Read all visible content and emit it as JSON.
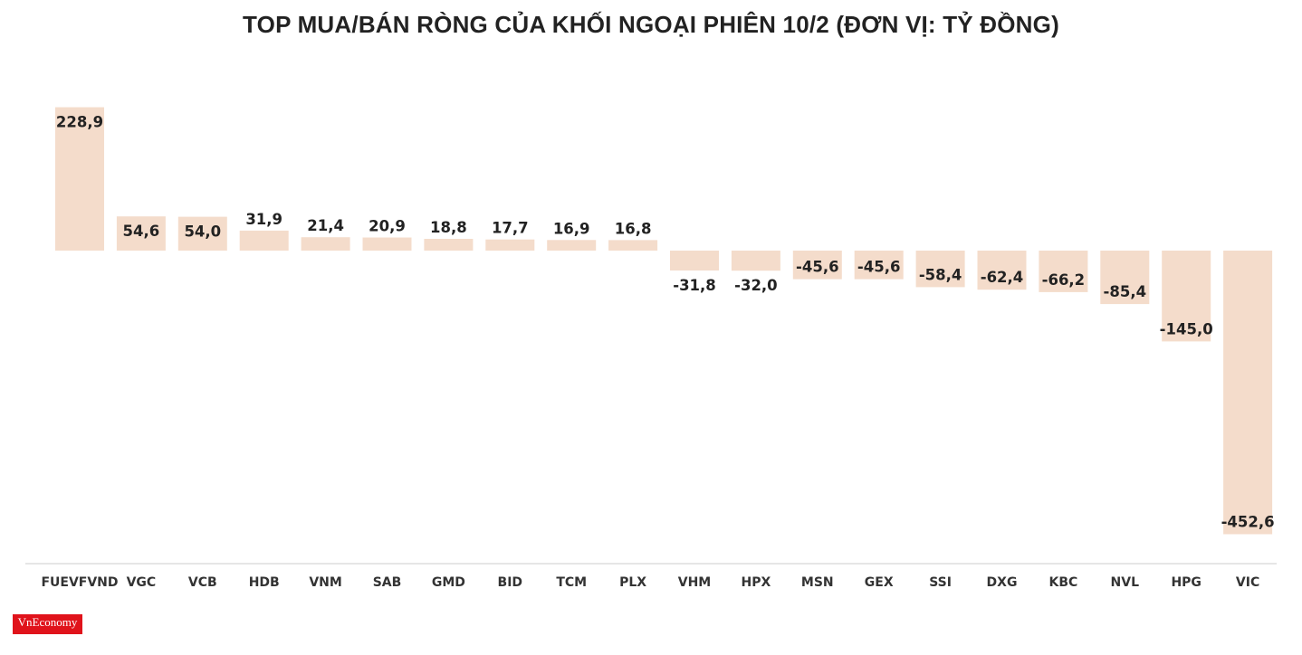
{
  "chart_data": {
    "type": "bar",
    "title": "TOP MUA/BÁN RÒNG CỦA KHỐI NGOẠI PHIÊN 10/2 (ĐƠN VỊ: TỶ ĐỒNG)",
    "categories": [
      "FUEVFVND",
      "VGC",
      "VCB",
      "HDB",
      "VNM",
      "SAB",
      "GMD",
      "BID",
      "TCM",
      "PLX",
      "VHM",
      "HPX",
      "MSN",
      "GEX",
      "SSI",
      "DXG",
      "KBC",
      "NVL",
      "HPG",
      "VIC"
    ],
    "values": [
      228.9,
      54.6,
      54.0,
      31.9,
      21.4,
      20.9,
      18.8,
      17.7,
      16.9,
      16.8,
      -31.8,
      -32.0,
      -45.6,
      -45.6,
      -58.4,
      -62.4,
      -66.2,
      -85.4,
      -145.0,
      -452.6
    ],
    "labels": [
      "228,9",
      "54,6",
      "54,0",
      "31,9",
      "21,4",
      "20,9",
      "18,8",
      "17,7",
      "16,9",
      "16,8",
      "-31,8",
      "-32,0",
      "-45,6",
      "-45,6",
      "-58,4",
      "-62,4",
      "-66,2",
      "-85,4",
      "-145,0",
      "-452,6"
    ],
    "xlabel": "",
    "ylabel": "",
    "bar_color": "#f4dccb",
    "grid": false
  },
  "logo": {
    "name": "VnEconomy",
    "color": "#e0131b"
  }
}
